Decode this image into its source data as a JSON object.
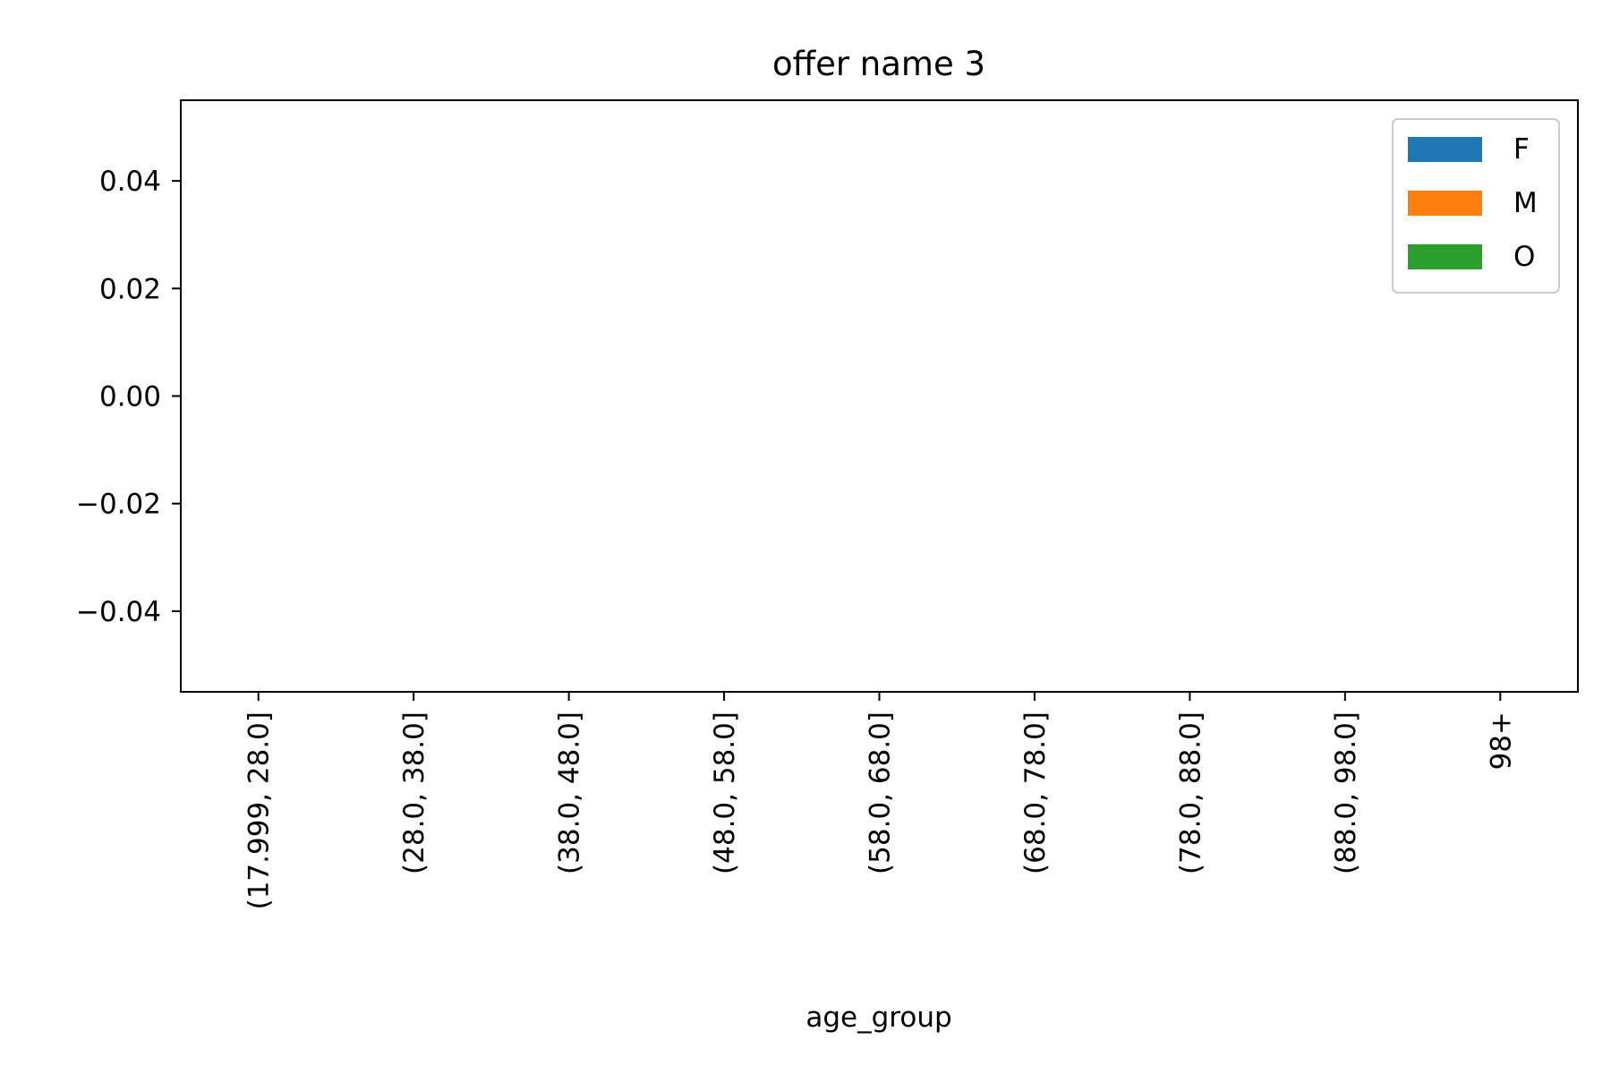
{
  "chart_data": {
    "type": "bar",
    "title": "offer name 3",
    "xlabel": "age_group",
    "ylabel": "",
    "categories": [
      "(17.999, 28.0]",
      "(28.0, 38.0]",
      "(38.0, 48.0]",
      "(48.0, 58.0]",
      "(58.0, 68.0]",
      "(68.0, 78.0]",
      "(78.0, 88.0]",
      "(88.0, 98.0]",
      "98+"
    ],
    "ylim": [
      -0.055,
      0.055
    ],
    "yticks": [
      -0.04,
      -0.02,
      0.0,
      0.02,
      0.04
    ],
    "ytick_labels": [
      "−0.04",
      "−0.02",
      "0.00",
      "0.02",
      "0.04"
    ],
    "series": [
      {
        "name": "F",
        "color": "#1f77b4",
        "values": [
          null,
          null,
          null,
          null,
          null,
          null,
          null,
          null,
          null
        ]
      },
      {
        "name": "M",
        "color": "#ff7f0e",
        "values": [
          null,
          null,
          null,
          null,
          null,
          null,
          null,
          null,
          null
        ]
      },
      {
        "name": "O",
        "color": "#2ca02c",
        "values": [
          null,
          null,
          null,
          null,
          null,
          null,
          null,
          null,
          null
        ]
      }
    ],
    "legend_position": "top-right",
    "grid": false
  }
}
